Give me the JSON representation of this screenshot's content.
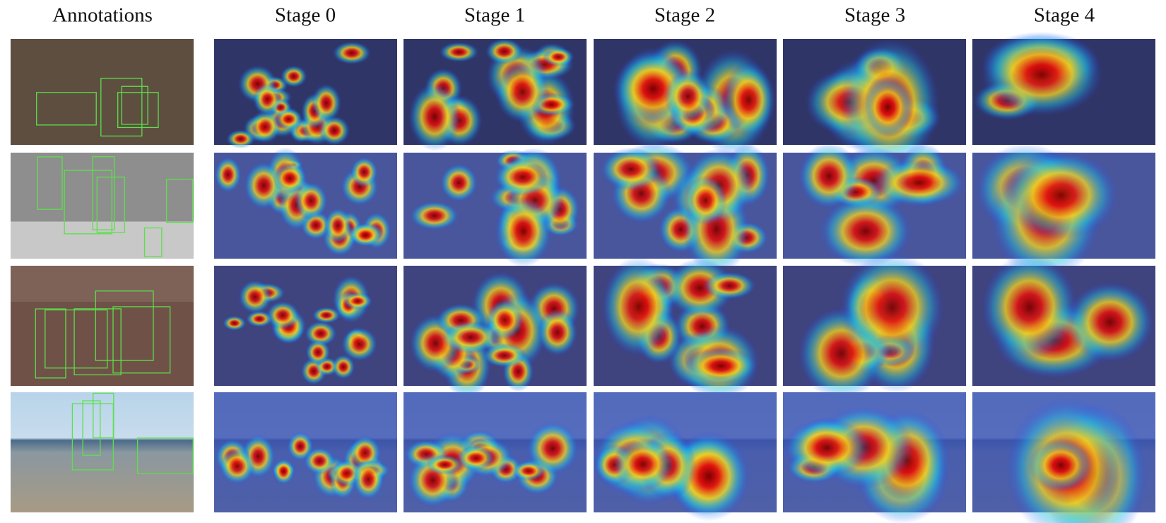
{
  "columns": [
    "Annotations",
    "Stage 0",
    "Stage 1",
    "Stage 2",
    "Stage 3",
    "Stage 4"
  ]
}
